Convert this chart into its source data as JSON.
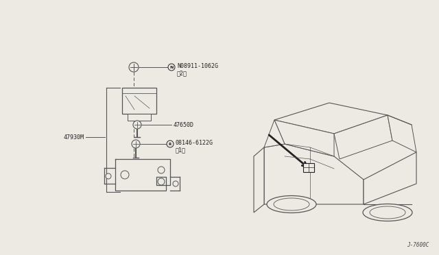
{
  "bg_color": "#ede9e3",
  "line_color": "#555555",
  "dark_color": "#222222",
  "label_color": "#444444",
  "diagram_note": "J-7600C",
  "label_n": "N08911-1062G",
  "label_n2": "（2）",
  "label_47650": "47650D",
  "label_r": "08146-6122G",
  "label_r2": "（1）",
  "label_47930": "47930M"
}
